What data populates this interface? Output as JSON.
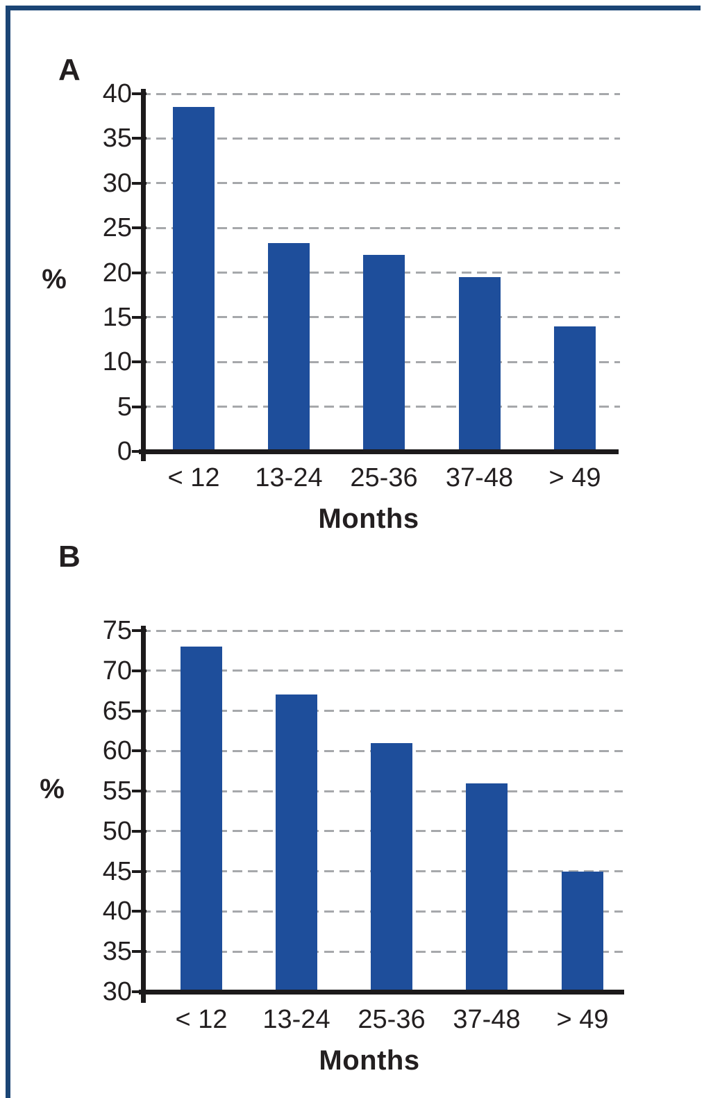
{
  "figure": {
    "background": "#ffffff",
    "frame_color": "#1b4575",
    "text_color": "#231f20",
    "axis_color": "#1c1a1b",
    "grid_color": "#a6a8ab",
    "bar_color": "#1e4e9b"
  },
  "chart_data": [
    {
      "type": "bar",
      "panel_label": "A",
      "categories": [
        "< 12",
        "13-24",
        "25-36",
        "37-48",
        "> 49"
      ],
      "values": [
        38.5,
        23.3,
        22,
        19.5,
        14
      ],
      "xlabel": "Months",
      "ylabel": "%",
      "ylim": [
        0,
        40
      ],
      "yticks": [
        0,
        5,
        10,
        15,
        20,
        25,
        30,
        35,
        40
      ],
      "grid": "horizontal-dashed",
      "legend": "none"
    },
    {
      "type": "bar",
      "panel_label": "B",
      "categories": [
        "< 12",
        "13-24",
        "25-36",
        "37-48",
        "> 49"
      ],
      "values": [
        73,
        67,
        61,
        56,
        45
      ],
      "xlabel": "Months",
      "ylabel": "%",
      "ylim": [
        30,
        75
      ],
      "yticks": [
        30,
        35,
        40,
        45,
        50,
        55,
        60,
        65,
        70,
        75
      ],
      "grid": "horizontal-dashed",
      "legend": "none"
    }
  ]
}
